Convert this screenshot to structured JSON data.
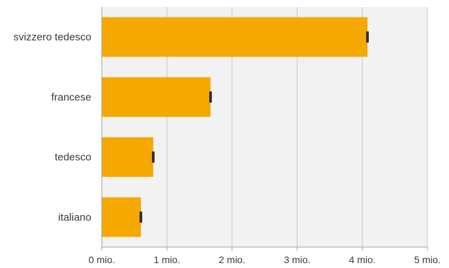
{
  "chart_data": {
    "type": "bar",
    "orientation": "horizontal",
    "categories": [
      "svizzero tedesco",
      "francese",
      "tedesco",
      "italiano"
    ],
    "values": [
      4.08,
      1.67,
      0.79,
      0.6
    ],
    "error": [
      0.02,
      0.02,
      0.02,
      0.02
    ],
    "xlim": [
      0,
      5
    ],
    "x_ticks": [
      0,
      1,
      2,
      3,
      4,
      5
    ],
    "x_tick_labels": [
      "0 mio.",
      "1 mio.",
      "2 mio.",
      "3 mio.",
      "4 mio.",
      "5 mio."
    ],
    "grid": true,
    "legend": false,
    "colors": {
      "bar": "#F5A800",
      "error_bar": "#2b2b2b",
      "plot_background": "#f2f2f2",
      "grid": "#c8c8c8",
      "axis": "#a0a0a0"
    }
  }
}
